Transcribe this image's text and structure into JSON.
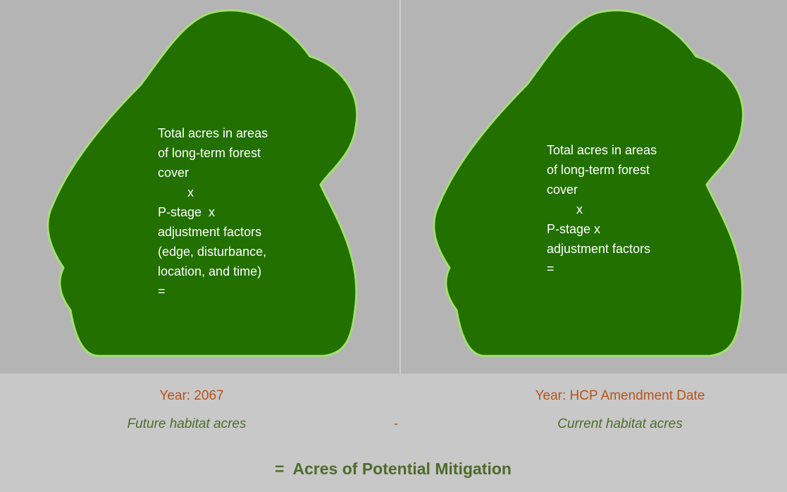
{
  "panels": [
    {
      "lines": [
        "Total acres in areas",
        "of long-term forest",
        "cover",
        "x",
        "P-stage  x",
        "adjustment factors",
        "(edge, disturbance,",
        "location, and time)",
        "="
      ],
      "year": "Year: 2067",
      "label": "Future habitat acres"
    },
    {
      "lines": [
        "Total acres in areas",
        "of long-term forest",
        "cover",
        "x",
        "P-stage x",
        "adjustment factors",
        "="
      ],
      "year": "Year: HCP Amendment Date",
      "label": "Current habitat acres"
    }
  ],
  "operator": "-",
  "result": "=  Acres of Potential Mitigation"
}
